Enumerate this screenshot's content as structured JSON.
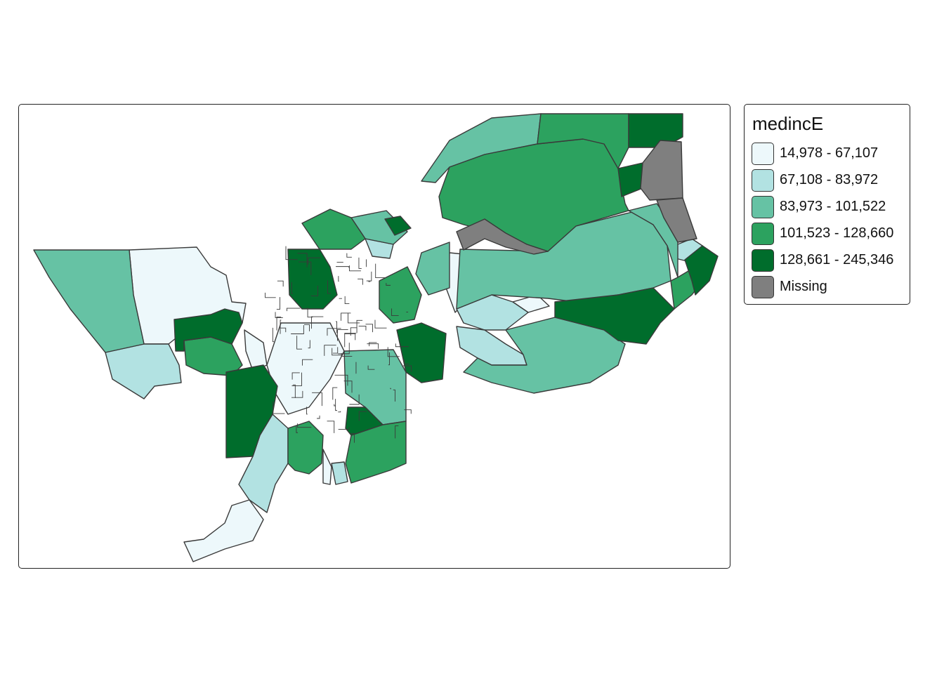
{
  "map": {
    "variable": "medincE",
    "classification": "quantile"
  },
  "legend": {
    "title": "medincE",
    "items": [
      {
        "label": "14,978 - 67,107",
        "color": "#edf8fb"
      },
      {
        "label": "67,108 - 83,972",
        "color": "#b2e2e2"
      },
      {
        "label": "83,973 - 101,522",
        "color": "#66c2a4"
      },
      {
        "label": "101,523 - 128,660",
        "color": "#2ca25f"
      },
      {
        "label": "128,661 - 245,346",
        "color": "#006d2c"
      },
      {
        "label": "Missing",
        "color": "#7f7f7f"
      }
    ]
  },
  "style": {
    "border_color": "#3a3a3a",
    "frame_color": "#222222",
    "background": "#ffffff"
  }
}
